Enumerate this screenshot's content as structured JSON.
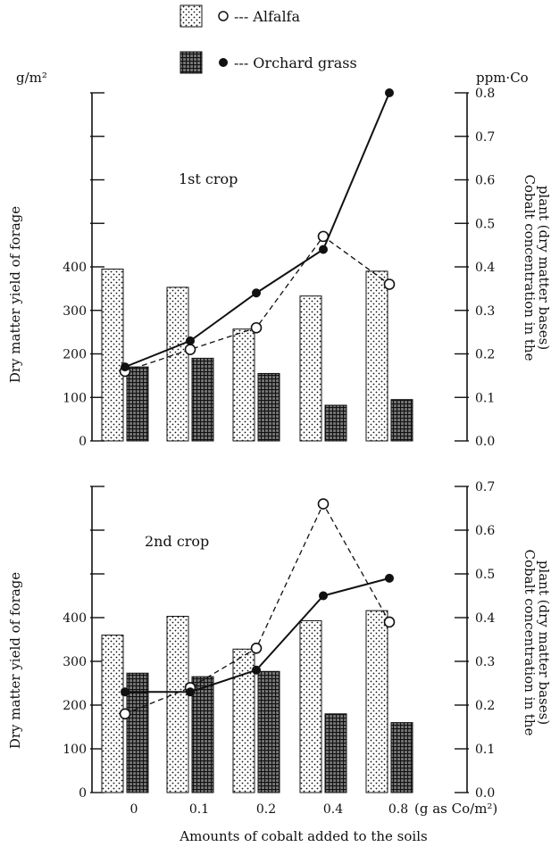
{
  "legend": [
    {
      "swatch": "dotted",
      "marker": "open-circle",
      "label": "--- Alfalfa"
    },
    {
      "swatch": "hatched",
      "marker": "filled-circle",
      "label": "--- Orchard grass"
    }
  ],
  "x_axis": {
    "tick_labels": [
      "0",
      "0.1",
      "0.2",
      "0.4",
      "0.8"
    ],
    "unit": "(g as Co/m²)",
    "title": "Amounts of cobalt added to the soils"
  },
  "colors": {
    "ink": "#111111",
    "paper": "#ffffff"
  },
  "chart_data": [
    {
      "type": "bar",
      "label": "1st crop",
      "categories": [
        "0",
        "0.1",
        "0.2",
        "0.4",
        "0.8"
      ],
      "left_axis": {
        "unit": "g/m²",
        "title": "Dry matter yield of forage",
        "range": [
          0,
          800
        ],
        "tick_labels": [
          "0",
          "100",
          "200",
          "300",
          "400"
        ]
      },
      "right_axis": {
        "unit": "ppm·Co",
        "title_line1": "Cobalt concentration in the",
        "title_line2": "plant (dry matter bases)",
        "range": [
          0,
          0.8
        ],
        "tick_labels": [
          "0.0",
          "0.1",
          "0.2",
          "0.3",
          "0.4",
          "0.5",
          "0.6",
          "0.7",
          "0.8"
        ]
      },
      "bars": [
        {
          "pattern": "dotted",
          "values": [
            395,
            353,
            257,
            333,
            390
          ]
        },
        {
          "pattern": "hatched",
          "values": [
            170,
            190,
            155,
            82,
            95
          ]
        }
      ],
      "lines": [
        {
          "marker": "open-circle",
          "style": "dashed",
          "values": [
            0.16,
            0.21,
            0.26,
            0.47,
            0.36
          ]
        },
        {
          "marker": "filled-circle",
          "style": "solid",
          "values": [
            0.17,
            0.23,
            0.34,
            0.44,
            0.8
          ]
        }
      ]
    },
    {
      "type": "bar",
      "label": "2nd crop",
      "categories": [
        "0",
        "0.1",
        "0.2",
        "0.4",
        "0.8"
      ],
      "left_axis": {
        "title": "Dry matter yield of forage",
        "range": [
          0,
          700
        ],
        "tick_labels": [
          "0",
          "100",
          "200",
          "300",
          "400"
        ]
      },
      "right_axis": {
        "title_line1": "Cobalt concentration in the",
        "title_line2": "plant (dry matter bases)",
        "range": [
          0,
          0.7
        ],
        "tick_labels": [
          "0.0",
          "0.1",
          "0.2",
          "0.3",
          "0.4",
          "0.5",
          "0.6",
          "0.7"
        ]
      },
      "bars": [
        {
          "pattern": "dotted",
          "values": [
            360,
            403,
            328,
            393,
            416
          ]
        },
        {
          "pattern": "hatched",
          "values": [
            273,
            265,
            277,
            180,
            160
          ]
        }
      ],
      "lines": [
        {
          "marker": "open-circle",
          "style": "dashed",
          "values": [
            0.18,
            0.24,
            0.33,
            0.66,
            0.39
          ]
        },
        {
          "marker": "filled-circle",
          "style": "solid",
          "values": [
            0.23,
            0.23,
            0.28,
            0.45,
            0.49
          ]
        }
      ]
    }
  ]
}
